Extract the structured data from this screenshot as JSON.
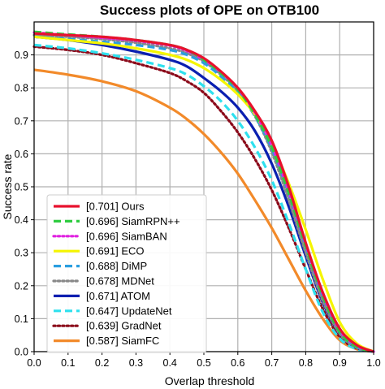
{
  "chart_data": {
    "type": "line",
    "title": "Success plots of OPE on OTB100",
    "xlabel": "Overlap threshold",
    "ylabel": "Success rate",
    "xlim": [
      0,
      1
    ],
    "ylim": [
      0,
      1
    ],
    "xticks": [
      0.0,
      0.1,
      0.2,
      0.3,
      0.4,
      0.5,
      0.6,
      0.7,
      0.8,
      0.9,
      1.0
    ],
    "yticks": [
      0.0,
      0.1,
      0.2,
      0.3,
      0.4,
      0.5,
      0.6,
      0.7,
      0.8,
      0.9
    ],
    "grid": true,
    "legend_position": "lower-left",
    "series": [
      {
        "name": "[0.701] Ours",
        "color": "#e8112d",
        "dash": "solid",
        "x": [
          0,
          0.1,
          0.2,
          0.3,
          0.4,
          0.45,
          0.5,
          0.55,
          0.6,
          0.65,
          0.7,
          0.75,
          0.8,
          0.85,
          0.9,
          0.95,
          1.0
        ],
        "y": [
          0.965,
          0.96,
          0.955,
          0.945,
          0.93,
          0.915,
          0.89,
          0.85,
          0.8,
          0.73,
          0.64,
          0.5,
          0.33,
          0.18,
          0.07,
          0.02,
          0.0
        ]
      },
      {
        "name": "[0.696] SiamRPN++",
        "color": "#2ecc40",
        "dash": "dashed",
        "x": [
          0,
          0.1,
          0.2,
          0.3,
          0.4,
          0.45,
          0.5,
          0.55,
          0.6,
          0.65,
          0.7,
          0.75,
          0.8,
          0.85,
          0.9,
          0.95,
          1.0
        ],
        "y": [
          0.97,
          0.962,
          0.955,
          0.945,
          0.93,
          0.915,
          0.885,
          0.845,
          0.795,
          0.72,
          0.62,
          0.48,
          0.32,
          0.17,
          0.06,
          0.015,
          0.0
        ]
      },
      {
        "name": "[0.696] SiamBAN",
        "color": "#e020e0",
        "dash": "dotted",
        "x": [
          0,
          0.1,
          0.2,
          0.3,
          0.4,
          0.45,
          0.5,
          0.55,
          0.6,
          0.65,
          0.7,
          0.75,
          0.8,
          0.85,
          0.9,
          0.95,
          1.0
        ],
        "y": [
          0.968,
          0.96,
          0.952,
          0.943,
          0.928,
          0.912,
          0.885,
          0.848,
          0.798,
          0.725,
          0.625,
          0.485,
          0.325,
          0.175,
          0.065,
          0.018,
          0.0
        ]
      },
      {
        "name": "[0.691] ECO",
        "color": "#f5f500",
        "dash": "solid",
        "x": [
          0,
          0.1,
          0.2,
          0.3,
          0.4,
          0.45,
          0.5,
          0.55,
          0.6,
          0.65,
          0.7,
          0.75,
          0.8,
          0.85,
          0.9,
          0.95,
          1.0
        ],
        "y": [
          0.955,
          0.945,
          0.935,
          0.92,
          0.9,
          0.885,
          0.86,
          0.825,
          0.78,
          0.72,
          0.63,
          0.51,
          0.37,
          0.22,
          0.09,
          0.025,
          0.0
        ]
      },
      {
        "name": "[0.688] DiMP",
        "color": "#2a9ee0",
        "dash": "dashed",
        "x": [
          0,
          0.1,
          0.2,
          0.3,
          0.4,
          0.45,
          0.5,
          0.55,
          0.6,
          0.65,
          0.7,
          0.75,
          0.8,
          0.85,
          0.9,
          0.95,
          1.0
        ],
        "y": [
          0.955,
          0.948,
          0.94,
          0.93,
          0.915,
          0.9,
          0.875,
          0.835,
          0.785,
          0.715,
          0.615,
          0.48,
          0.32,
          0.17,
          0.065,
          0.015,
          0.0
        ]
      },
      {
        "name": "[0.678] MDNet",
        "color": "#888888",
        "dash": "dotted",
        "x": [
          0,
          0.1,
          0.2,
          0.3,
          0.4,
          0.45,
          0.5,
          0.55,
          0.6,
          0.65,
          0.7,
          0.75,
          0.8,
          0.85,
          0.9,
          0.95,
          1.0
        ],
        "y": [
          0.96,
          0.955,
          0.948,
          0.937,
          0.92,
          0.905,
          0.88,
          0.84,
          0.79,
          0.715,
          0.605,
          0.46,
          0.3,
          0.155,
          0.055,
          0.012,
          0.0
        ]
      },
      {
        "name": "[0.671] ATOM",
        "color": "#0a1fb0",
        "dash": "solid",
        "x": [
          0,
          0.1,
          0.2,
          0.3,
          0.4,
          0.45,
          0.5,
          0.55,
          0.6,
          0.65,
          0.7,
          0.75,
          0.8,
          0.85,
          0.9,
          0.95,
          1.0
        ],
        "y": [
          0.955,
          0.945,
          0.93,
          0.91,
          0.885,
          0.865,
          0.83,
          0.79,
          0.74,
          0.67,
          0.57,
          0.44,
          0.29,
          0.15,
          0.055,
          0.012,
          0.0
        ]
      },
      {
        "name": "[0.647] UpdateNet",
        "color": "#2ee0ee",
        "dash": "dashed",
        "x": [
          0,
          0.1,
          0.2,
          0.3,
          0.4,
          0.45,
          0.5,
          0.55,
          0.6,
          0.65,
          0.7,
          0.75,
          0.8,
          0.85,
          0.9,
          0.95,
          1.0
        ],
        "y": [
          0.93,
          0.92,
          0.905,
          0.885,
          0.86,
          0.84,
          0.805,
          0.76,
          0.7,
          0.62,
          0.52,
          0.39,
          0.25,
          0.12,
          0.04,
          0.008,
          0.0
        ]
      },
      {
        "name": "[0.639] GradNet",
        "color": "#8b0a1a",
        "dash": "dotted",
        "x": [
          0,
          0.1,
          0.2,
          0.3,
          0.4,
          0.45,
          0.5,
          0.55,
          0.6,
          0.65,
          0.7,
          0.75,
          0.8,
          0.85,
          0.9,
          0.95,
          1.0
        ],
        "y": [
          0.925,
          0.915,
          0.9,
          0.875,
          0.845,
          0.82,
          0.785,
          0.73,
          0.665,
          0.585,
          0.49,
          0.375,
          0.25,
          0.13,
          0.045,
          0.01,
          0.0
        ]
      },
      {
        "name": "[0.587] SiamFC",
        "color": "#f28a2a",
        "dash": "solid",
        "x": [
          0,
          0.1,
          0.2,
          0.3,
          0.4,
          0.45,
          0.5,
          0.55,
          0.6,
          0.65,
          0.7,
          0.75,
          0.8,
          0.85,
          0.9,
          0.95,
          1.0
        ],
        "y": [
          0.855,
          0.84,
          0.82,
          0.79,
          0.74,
          0.705,
          0.66,
          0.605,
          0.54,
          0.46,
          0.375,
          0.28,
          0.185,
          0.1,
          0.035,
          0.008,
          0.0
        ]
      }
    ]
  }
}
